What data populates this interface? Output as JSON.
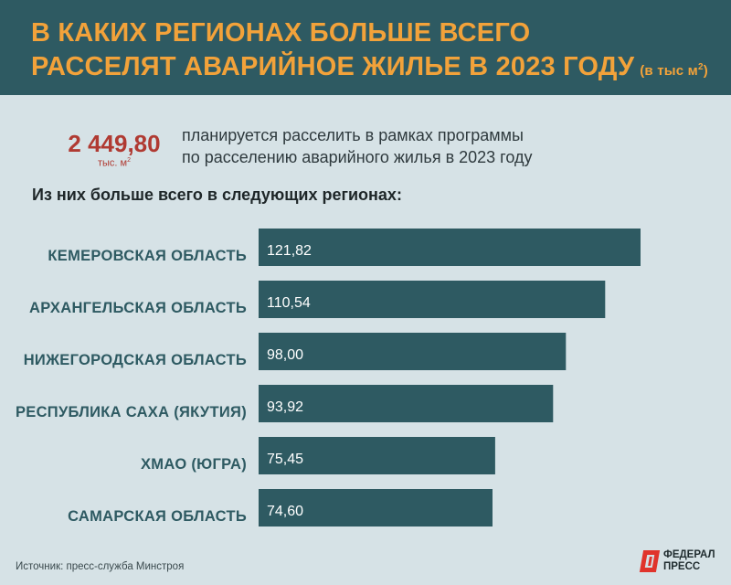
{
  "header": {
    "title_line1": "В КАКИХ РЕГИОНАХ БОЛЬШЕ ВСЕГО",
    "title_line2": "РАССЕЛЯТ АВАРИЙНОЕ ЖИЛЬЕ В 2023 ГОДУ",
    "unit_prefix": "(в тыс м",
    "unit_sup": "2",
    "unit_suffix": ")"
  },
  "summary": {
    "total": "2 449,80",
    "total_unit": "тыс. м",
    "total_unit_sup": "2",
    "desc_line1": "планируется расселить в рамках программы",
    "desc_line2": "по расселению аварийного жилья в 2023 году"
  },
  "subtitle": "Из них больше всего в следующих регионах:",
  "chart_data": {
    "type": "bar",
    "orientation": "horizontal",
    "categories": [
      "КЕМЕРОВСКАЯ ОБЛАСТЬ",
      "АРХАНГЕЛЬСКАЯ ОБЛАСТЬ",
      "НИЖЕГОРОДСКАЯ ОБЛАСТЬ",
      "РЕСПУБЛИКА САХА (ЯКУТИЯ)",
      "ХМАО (ЮГРА)",
      "САМАРСКАЯ ОБЛАСТЬ"
    ],
    "values": [
      121.82,
      110.54,
      98.0,
      93.92,
      75.45,
      74.6
    ],
    "value_labels": [
      "121,82",
      "110,54",
      "98,00",
      "93,92",
      "75,45",
      "74,60"
    ],
    "bar_color": "#2e5a62",
    "grid": false,
    "legend": "none"
  },
  "footer": {
    "source": "Источник: пресс-служба Минстроя",
    "logo_line1": "ФЕДЕРАЛ",
    "logo_line2": "ПРЕСС"
  },
  "colors": {
    "accent": "#f2a23a",
    "highlight": "#b03a32",
    "header_bg": "#2e5a62",
    "page_bg": "#d6e2e6",
    "logo_red": "#e0342c"
  }
}
